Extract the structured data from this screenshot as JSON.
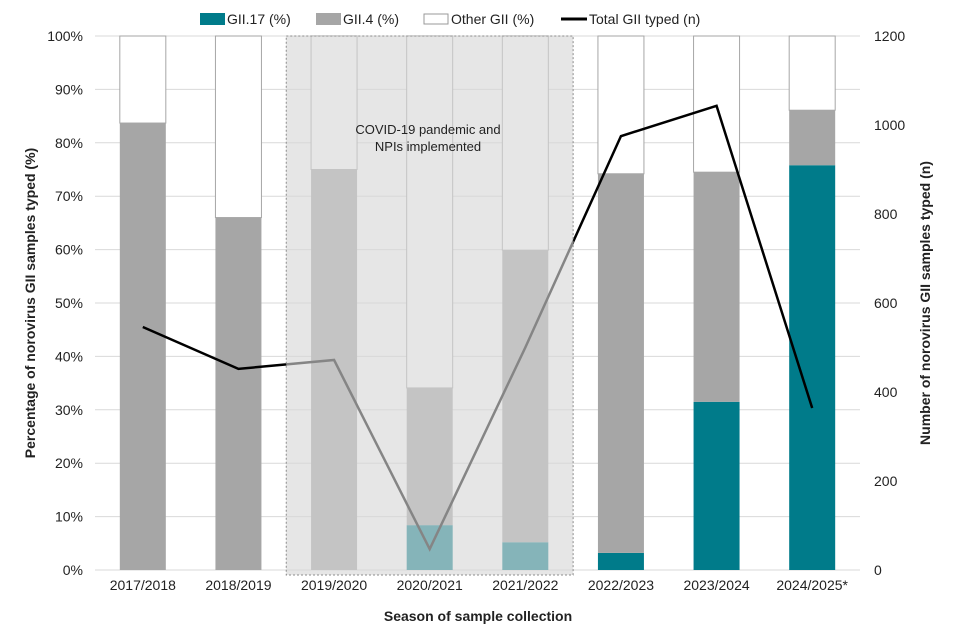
{
  "chart_data": {
    "type": "bar",
    "subtype": "stacked-bar-with-line-secondary-axis",
    "categories": [
      "2017/2018",
      "2018/2019",
      "2019/2020",
      "2020/2021",
      "2021/2022",
      "2022/2023",
      "2023/2024",
      "2024/2025*"
    ],
    "series": [
      {
        "name": "GII.17 (%)",
        "type": "bar",
        "axis": "left",
        "color": "#007b8a",
        "values": [
          0,
          0,
          0,
          8.4,
          5.2,
          3.2,
          31.5,
          75.8
        ]
      },
      {
        "name": "GII.4 (%)",
        "type": "bar",
        "axis": "left",
        "color": "#a6a6a6",
        "values": [
          83.7,
          66.0,
          75.0,
          25.7,
          54.7,
          71.0,
          43.0,
          10.3
        ]
      },
      {
        "name": "Other GII (%)",
        "type": "bar",
        "axis": "left",
        "color": "#ffffff",
        "values": [
          16.3,
          34.0,
          25.0,
          65.9,
          40.1,
          25.8,
          25.5,
          13.9
        ]
      },
      {
        "name": "Total GII typed (n)",
        "type": "line",
        "axis": "right",
        "color": "#000000",
        "values": [
          546,
          452,
          472,
          47,
          500,
          975,
          1043,
          364
        ]
      }
    ],
    "xlabel": "Season of sample collection",
    "ylabel": "Percentage of norovirus GII samples typed  (%)",
    "y2label": "Number of norovirus GII samples typed (n)",
    "ylim": [
      0,
      100
    ],
    "y2lim": [
      0,
      1200
    ],
    "yticks": [
      "0%",
      "10%",
      "20%",
      "30%",
      "40%",
      "50%",
      "60%",
      "70%",
      "80%",
      "90%",
      "100%"
    ],
    "y2ticks": [
      "0",
      "200",
      "400",
      "600",
      "800",
      "1000",
      "1200"
    ],
    "legend": "top",
    "grid": true,
    "annotation": {
      "lines": [
        "COVID-19 pandemic and",
        "NPIs implemented"
      ],
      "span": [
        "2019/2020",
        "2021/2022"
      ]
    }
  }
}
